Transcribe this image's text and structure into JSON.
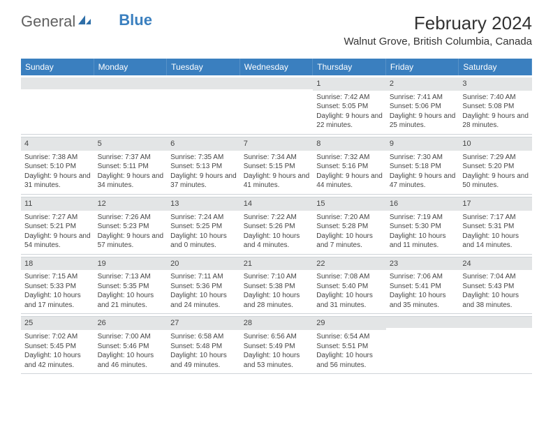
{
  "logo": {
    "general": "General",
    "blue": "Blue"
  },
  "title": "February 2024",
  "location": "Walnut Grove, British Columbia, Canada",
  "colors": {
    "header_bg": "#3a7fbf",
    "header_text": "#ffffff",
    "band_bg": "#e3e5e6",
    "grid_line": "#cfd4d8",
    "body_text": "#444444"
  },
  "day_names": [
    "Sunday",
    "Monday",
    "Tuesday",
    "Wednesday",
    "Thursday",
    "Friday",
    "Saturday"
  ],
  "weeks": [
    [
      null,
      null,
      null,
      null,
      {
        "n": "1",
        "sr": "7:42 AM",
        "ss": "5:05 PM",
        "dl": "9 hours and 22 minutes."
      },
      {
        "n": "2",
        "sr": "7:41 AM",
        "ss": "5:06 PM",
        "dl": "9 hours and 25 minutes."
      },
      {
        "n": "3",
        "sr": "7:40 AM",
        "ss": "5:08 PM",
        "dl": "9 hours and 28 minutes."
      }
    ],
    [
      {
        "n": "4",
        "sr": "7:38 AM",
        "ss": "5:10 PM",
        "dl": "9 hours and 31 minutes."
      },
      {
        "n": "5",
        "sr": "7:37 AM",
        "ss": "5:11 PM",
        "dl": "9 hours and 34 minutes."
      },
      {
        "n": "6",
        "sr": "7:35 AM",
        "ss": "5:13 PM",
        "dl": "9 hours and 37 minutes."
      },
      {
        "n": "7",
        "sr": "7:34 AM",
        "ss": "5:15 PM",
        "dl": "9 hours and 41 minutes."
      },
      {
        "n": "8",
        "sr": "7:32 AM",
        "ss": "5:16 PM",
        "dl": "9 hours and 44 minutes."
      },
      {
        "n": "9",
        "sr": "7:30 AM",
        "ss": "5:18 PM",
        "dl": "9 hours and 47 minutes."
      },
      {
        "n": "10",
        "sr": "7:29 AM",
        "ss": "5:20 PM",
        "dl": "9 hours and 50 minutes."
      }
    ],
    [
      {
        "n": "11",
        "sr": "7:27 AM",
        "ss": "5:21 PM",
        "dl": "9 hours and 54 minutes."
      },
      {
        "n": "12",
        "sr": "7:26 AM",
        "ss": "5:23 PM",
        "dl": "9 hours and 57 minutes."
      },
      {
        "n": "13",
        "sr": "7:24 AM",
        "ss": "5:25 PM",
        "dl": "10 hours and 0 minutes."
      },
      {
        "n": "14",
        "sr": "7:22 AM",
        "ss": "5:26 PM",
        "dl": "10 hours and 4 minutes."
      },
      {
        "n": "15",
        "sr": "7:20 AM",
        "ss": "5:28 PM",
        "dl": "10 hours and 7 minutes."
      },
      {
        "n": "16",
        "sr": "7:19 AM",
        "ss": "5:30 PM",
        "dl": "10 hours and 11 minutes."
      },
      {
        "n": "17",
        "sr": "7:17 AM",
        "ss": "5:31 PM",
        "dl": "10 hours and 14 minutes."
      }
    ],
    [
      {
        "n": "18",
        "sr": "7:15 AM",
        "ss": "5:33 PM",
        "dl": "10 hours and 17 minutes."
      },
      {
        "n": "19",
        "sr": "7:13 AM",
        "ss": "5:35 PM",
        "dl": "10 hours and 21 minutes."
      },
      {
        "n": "20",
        "sr": "7:11 AM",
        "ss": "5:36 PM",
        "dl": "10 hours and 24 minutes."
      },
      {
        "n": "21",
        "sr": "7:10 AM",
        "ss": "5:38 PM",
        "dl": "10 hours and 28 minutes."
      },
      {
        "n": "22",
        "sr": "7:08 AM",
        "ss": "5:40 PM",
        "dl": "10 hours and 31 minutes."
      },
      {
        "n": "23",
        "sr": "7:06 AM",
        "ss": "5:41 PM",
        "dl": "10 hours and 35 minutes."
      },
      {
        "n": "24",
        "sr": "7:04 AM",
        "ss": "5:43 PM",
        "dl": "10 hours and 38 minutes."
      }
    ],
    [
      {
        "n": "25",
        "sr": "7:02 AM",
        "ss": "5:45 PM",
        "dl": "10 hours and 42 minutes."
      },
      {
        "n": "26",
        "sr": "7:00 AM",
        "ss": "5:46 PM",
        "dl": "10 hours and 46 minutes."
      },
      {
        "n": "27",
        "sr": "6:58 AM",
        "ss": "5:48 PM",
        "dl": "10 hours and 49 minutes."
      },
      {
        "n": "28",
        "sr": "6:56 AM",
        "ss": "5:49 PM",
        "dl": "10 hours and 53 minutes."
      },
      {
        "n": "29",
        "sr": "6:54 AM",
        "ss": "5:51 PM",
        "dl": "10 hours and 56 minutes."
      },
      null,
      null
    ]
  ],
  "labels": {
    "sunrise": "Sunrise:",
    "sunset": "Sunset:",
    "daylight": "Daylight:"
  }
}
